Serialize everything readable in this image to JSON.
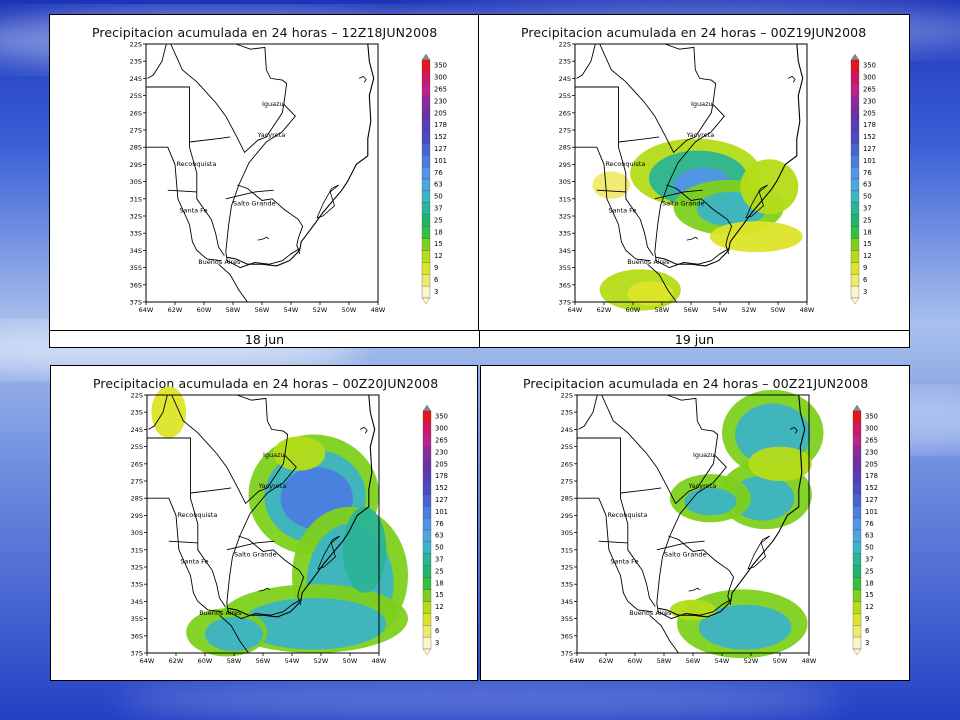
{
  "panels": [
    {
      "title": "Precipitacion acumulada en 24 horas – 12Z18JUN2008",
      "caption": "18 jun"
    },
    {
      "title": "Precipitacion acumulada en 24 horas – 00Z19JUN2008",
      "caption": "19 jun"
    },
    {
      "title": "Precipitacion acumulada en 24 horas – 00Z20JUN2008",
      "caption": ""
    },
    {
      "title": "Precipitacion acumulada en 24 horas – 00Z21JUN2008",
      "caption": ""
    }
  ],
  "map": {
    "lat_labels": [
      "22S",
      "23S",
      "24S",
      "25S",
      "26S",
      "27S",
      "28S",
      "29S",
      "30S",
      "31S",
      "32S",
      "33S",
      "34S",
      "35S",
      "36S",
      "37S"
    ],
    "lon_labels": [
      "64W",
      "62W",
      "60W",
      "58W",
      "56W",
      "54W",
      "52W",
      "50W",
      "48W"
    ],
    "places": [
      "Iguazu",
      "Yacyreta",
      "Reconquista",
      "Santa Fe",
      "Salto Grande",
      "Buenos Aires"
    ]
  },
  "legend": {
    "values": [
      "350",
      "300",
      "265",
      "230",
      "205",
      "178",
      "152",
      "127",
      "101",
      "76",
      "63",
      "50",
      "37",
      "25",
      "18",
      "15",
      "12",
      "9",
      "6",
      "3"
    ],
    "colors": [
      "#e8141e",
      "#d01664",
      "#c0208c",
      "#8c2a9a",
      "#6e30a6",
      "#5a3cb4",
      "#4a4cc4",
      "#4a62d4",
      "#4a7ee0",
      "#5294e8",
      "#4aa8e0",
      "#3cb4c4",
      "#2cb496",
      "#22b46c",
      "#32c040",
      "#7ed01c",
      "#b4dc18",
      "#dce428",
      "#f0ea6c",
      "#fcf4cc"
    ]
  }
}
